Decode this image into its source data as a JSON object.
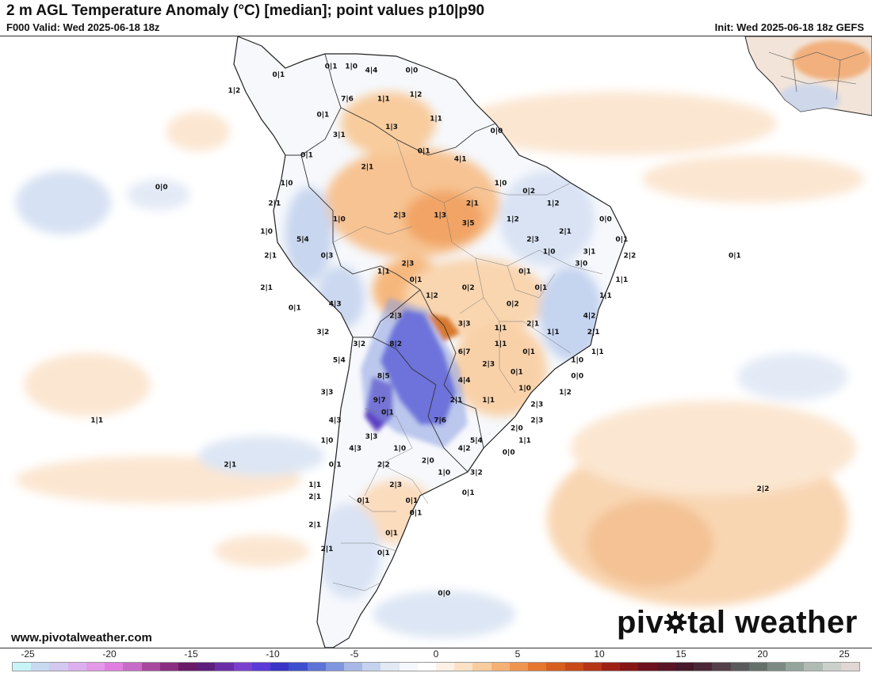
{
  "header": {
    "title": "2 m AGL Temperature Anomaly (°C) [median]; point values p10|p90",
    "valid": "F000 Valid: Wed 2025-06-18 18z",
    "init": "Init: Wed 2025-06-18 18z GEFS"
  },
  "footer": {
    "website": "www.pivotalweather.com",
    "brand_left": "piv",
    "brand_right": "tal weather"
  },
  "colorbar": {
    "colors": [
      "#c8f4f8",
      "#c9d9f2",
      "#d2c8f0",
      "#dcb0ee",
      "#e398e8",
      "#e07fdf",
      "#c76bc8",
      "#a8489e",
      "#8a2e80",
      "#6a1a66",
      "#5d1f7c",
      "#6a2fa8",
      "#7b3fd0",
      "#5a3ad8",
      "#3a34c8",
      "#3d4fcf",
      "#5d73d8",
      "#7f95df",
      "#a7b8e6",
      "#c6d3ee",
      "#e2e9f5",
      "#f4f7fb",
      "#ffffff",
      "#fdf1e6",
      "#fbe2c6",
      "#f8cc9d",
      "#f4b173",
      "#ef9550",
      "#e6772e",
      "#d85f1f",
      "#c84a17",
      "#b53515",
      "#9e2213",
      "#871514",
      "#6d1020",
      "#5a1525",
      "#47192a",
      "#4a2838",
      "#54404a",
      "#5a5a5c",
      "#66706a",
      "#7b8a82",
      "#95a59c",
      "#b0bbb4",
      "#cbd0cb",
      "#e0d6d4"
    ],
    "ticks": [
      "-25",
      "-20",
      "-15",
      "-10",
      "-5",
      "0",
      "5",
      "10",
      "15",
      "20",
      "25"
    ]
  },
  "point_values": [
    {
      "text": "0|1",
      "x": -80.5,
      "y": 11
    },
    {
      "text": "0|1",
      "x": -74,
      "y": 12
    },
    {
      "text": "1|0",
      "x": -71.5,
      "y": 12
    },
    {
      "text": "4|4",
      "x": -69,
      "y": 11.5
    },
    {
      "text": "0|0",
      "x": -64,
      "y": 11.5
    },
    {
      "text": "1|2",
      "x": -86,
      "y": 9
    },
    {
      "text": "7|6",
      "x": -72,
      "y": 8
    },
    {
      "text": "1|1",
      "x": -67.5,
      "y": 8
    },
    {
      "text": "1|2",
      "x": -63.5,
      "y": 8.5
    },
    {
      "text": "0|1",
      "x": -75,
      "y": 6
    },
    {
      "text": "1|3",
      "x": -66.5,
      "y": 4.5
    },
    {
      "text": "1|1",
      "x": -61,
      "y": 5.5
    },
    {
      "text": "3|1",
      "x": -73,
      "y": 3.5
    },
    {
      "text": "0|0",
      "x": -53.5,
      "y": 4
    },
    {
      "text": "0|1",
      "x": -77,
      "y": 1
    },
    {
      "text": "0|1",
      "x": -62.5,
      "y": 1.5
    },
    {
      "text": "4|1",
      "x": -58,
      "y": 0.5
    },
    {
      "text": "2|1",
      "x": -69.5,
      "y": -0.5
    },
    {
      "text": "0|0",
      "x": -95,
      "y": -3
    },
    {
      "text": "1|0",
      "x": -79.5,
      "y": -2.5
    },
    {
      "text": "1|0",
      "x": -53,
      "y": -2.5
    },
    {
      "text": "0|2",
      "x": -49.5,
      "y": -3.5
    },
    {
      "text": "2|1",
      "x": -81,
      "y": -5
    },
    {
      "text": "2|1",
      "x": -56.5,
      "y": -5
    },
    {
      "text": "1|2",
      "x": -46.5,
      "y": -5
    },
    {
      "text": "1|0",
      "x": -73,
      "y": -7
    },
    {
      "text": "2|3",
      "x": -65.5,
      "y": -6.5
    },
    {
      "text": "1|3",
      "x": -60.5,
      "y": -6.5
    },
    {
      "text": "3|5",
      "x": -57,
      "y": -7.5
    },
    {
      "text": "1|2",
      "x": -51.5,
      "y": -7
    },
    {
      "text": "0|0",
      "x": -40,
      "y": -7
    },
    {
      "text": "1|0",
      "x": -82,
      "y": -8.5
    },
    {
      "text": "5|4",
      "x": -77.5,
      "y": -9.5
    },
    {
      "text": "2|1",
      "x": -45,
      "y": -8.5
    },
    {
      "text": "2|3",
      "x": -49,
      "y": -9.5
    },
    {
      "text": "0|1",
      "x": -38,
      "y": -9.5
    },
    {
      "text": "2|1",
      "x": -81.5,
      "y": -11.5
    },
    {
      "text": "0|3",
      "x": -74.5,
      "y": -11.5
    },
    {
      "text": "3|1",
      "x": -42,
      "y": -11
    },
    {
      "text": "1|0",
      "x": -47,
      "y": -11
    },
    {
      "text": "2|2",
      "x": -37,
      "y": -11.5
    },
    {
      "text": "0|1",
      "x": -24,
      "y": -11.5
    },
    {
      "text": "2|3",
      "x": -64.5,
      "y": -12.5
    },
    {
      "text": "3|0",
      "x": -43,
      "y": -12.5
    },
    {
      "text": "1|1",
      "x": -67.5,
      "y": -13.5
    },
    {
      "text": "0|1",
      "x": -50,
      "y": -13.5
    },
    {
      "text": "0|1",
      "x": -63.5,
      "y": -14.5
    },
    {
      "text": "1|1",
      "x": -38,
      "y": -14.5
    },
    {
      "text": "2|1",
      "x": -82,
      "y": -15.5
    },
    {
      "text": "0|2",
      "x": -57,
      "y": -15.5
    },
    {
      "text": "0|1",
      "x": -48,
      "y": -15.5
    },
    {
      "text": "1|2",
      "x": -61.5,
      "y": -16.5
    },
    {
      "text": "1|1",
      "x": -40,
      "y": -16.5
    },
    {
      "text": "4|3",
      "x": -73.5,
      "y": -17.5
    },
    {
      "text": "0|1",
      "x": -78.5,
      "y": -18
    },
    {
      "text": "0|2",
      "x": -51.5,
      "y": -17.5
    },
    {
      "text": "2|3",
      "x": -66,
      "y": -19
    },
    {
      "text": "4|2",
      "x": -42,
      "y": -19
    },
    {
      "text": "3|3",
      "x": -57.5,
      "y": -20
    },
    {
      "text": "2|1",
      "x": -49,
      "y": -20
    },
    {
      "text": "3|2",
      "x": -75,
      "y": -21
    },
    {
      "text": "1|1",
      "x": -53,
      "y": -20.5
    },
    {
      "text": "1|1",
      "x": -46.5,
      "y": -21
    },
    {
      "text": "2|1",
      "x": -41.5,
      "y": -21
    },
    {
      "text": "1|1",
      "x": -53,
      "y": -22.5
    },
    {
      "text": "3|2",
      "x": -70.5,
      "y": -22.5
    },
    {
      "text": "8|2",
      "x": -66,
      "y": -22.5
    },
    {
      "text": "6|7",
      "x": -57.5,
      "y": -23.5
    },
    {
      "text": "0|1",
      "x": -49.5,
      "y": -23.5
    },
    {
      "text": "1|1",
      "x": -41,
      "y": -23.5
    },
    {
      "text": "1|0",
      "x": -43.5,
      "y": -24.5
    },
    {
      "text": "5|4",
      "x": -73,
      "y": -24.5
    },
    {
      "text": "2|3",
      "x": -54.5,
      "y": -25
    },
    {
      "text": "0|1",
      "x": -51,
      "y": -26
    },
    {
      "text": "8|5",
      "x": -67.5,
      "y": -26.5
    },
    {
      "text": "0|0",
      "x": -43.5,
      "y": -26.5
    },
    {
      "text": "4|4",
      "x": -57.5,
      "y": -27
    },
    {
      "text": "1|0",
      "x": -50,
      "y": -28
    },
    {
      "text": "3|3",
      "x": -74.5,
      "y": -28.5
    },
    {
      "text": "1|2",
      "x": -45,
      "y": -28.5
    },
    {
      "text": "9|7",
      "x": -68,
      "y": -29.5
    },
    {
      "text": "2|1",
      "x": -58.5,
      "y": -29.5
    },
    {
      "text": "1|1",
      "x": -54.5,
      "y": -29.5
    },
    {
      "text": "2|3",
      "x": -48.5,
      "y": -30
    },
    {
      "text": "0|1",
      "x": -67,
      "y": -31
    },
    {
      "text": "1|1",
      "x": -103,
      "y": -32
    },
    {
      "text": "4|3",
      "x": -73.5,
      "y": -32
    },
    {
      "text": "7|6",
      "x": -60.5,
      "y": -32
    },
    {
      "text": "2|3",
      "x": -48.5,
      "y": -32
    },
    {
      "text": "2|0",
      "x": -51,
      "y": -33
    },
    {
      "text": "3|3",
      "x": -69,
      "y": -34
    },
    {
      "text": "5|4",
      "x": -56,
      "y": -34.5
    },
    {
      "text": "1|1",
      "x": -50,
      "y": -34.5
    },
    {
      "text": "1|0",
      "x": -74.5,
      "y": -34.5
    },
    {
      "text": "4|3",
      "x": -71,
      "y": -35.5
    },
    {
      "text": "1|0",
      "x": -65.5,
      "y": -35.5
    },
    {
      "text": "4|2",
      "x": -57.5,
      "y": -35.5
    },
    {
      "text": "0|0",
      "x": -52,
      "y": -36
    },
    {
      "text": "2|0",
      "x": -62,
      "y": -37
    },
    {
      "text": "2|2",
      "x": -67.5,
      "y": -37.5
    },
    {
      "text": "2|1",
      "x": -86.5,
      "y": -37.5
    },
    {
      "text": "0|1",
      "x": -73.5,
      "y": -37.5
    },
    {
      "text": "1|0",
      "x": -60,
      "y": -38.5
    },
    {
      "text": "3|2",
      "x": -56,
      "y": -38.5
    },
    {
      "text": "1|1",
      "x": -76,
      "y": -40
    },
    {
      "text": "2|3",
      "x": -66,
      "y": -40
    },
    {
      "text": "0|1",
      "x": -57,
      "y": -41
    },
    {
      "text": "2|1",
      "x": -76,
      "y": -41.5
    },
    {
      "text": "0|1",
      "x": -70,
      "y": -42
    },
    {
      "text": "0|1",
      "x": -64,
      "y": -42
    },
    {
      "text": "2|2",
      "x": -20.5,
      "y": -40.5
    },
    {
      "text": "0|1",
      "x": -63.5,
      "y": -43.5
    },
    {
      "text": "2|1",
      "x": -76,
      "y": -45
    },
    {
      "text": "0|1",
      "x": -66.5,
      "y": -46
    },
    {
      "text": "2|1",
      "x": -74.5,
      "y": -48
    },
    {
      "text": "0|1",
      "x": -67.5,
      "y": -48.5
    },
    {
      "text": "0|0",
      "x": -60,
      "y": -53.5
    }
  ],
  "legend_colors": {
    "cold": "#4b3fd1",
    "warm": "#e59a55",
    "light_cool": "#c9d8ef",
    "light_warm": "#fbe0c6"
  }
}
